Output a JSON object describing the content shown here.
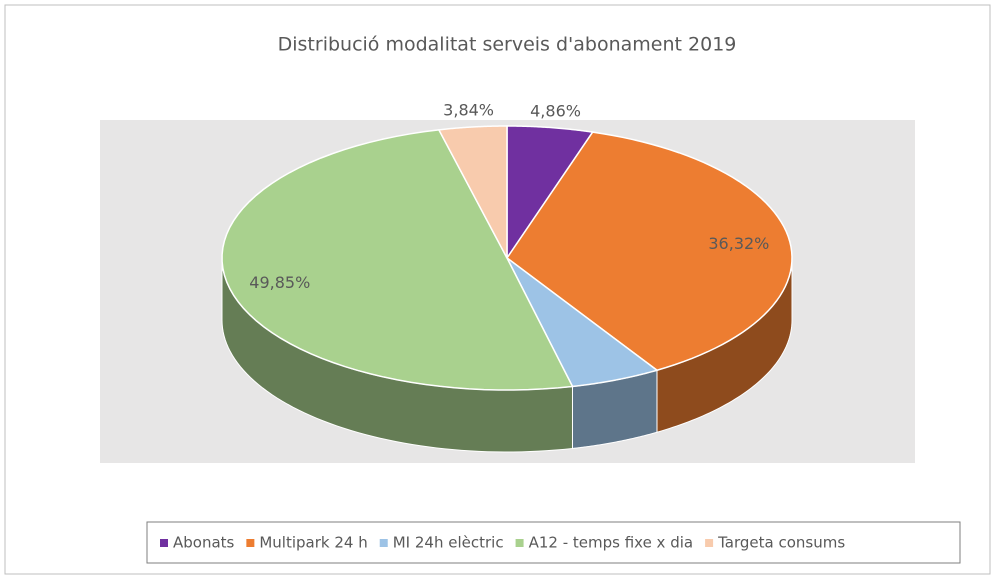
{
  "chart_data": {
    "type": "pie3d",
    "title": "Distribució modalitat serveis d'abonament 2019",
    "categories": [
      "Abonats",
      "Multipark 24 h",
      "MI 24h elèctric",
      "A12 - temps fixe x dia",
      "Targeta consums"
    ],
    "values": [
      4.86,
      36.32,
      5.13,
      49.85,
      3.84
    ],
    "value_labels": [
      "4,86%",
      "36,32%",
      null,
      "49,85%",
      "3,84%"
    ],
    "colors": [
      "#7030a0",
      "#ed7d31",
      "#9dc3e6",
      "#a9d18e",
      "#f8cbad"
    ],
    "legend": "bottom"
  }
}
